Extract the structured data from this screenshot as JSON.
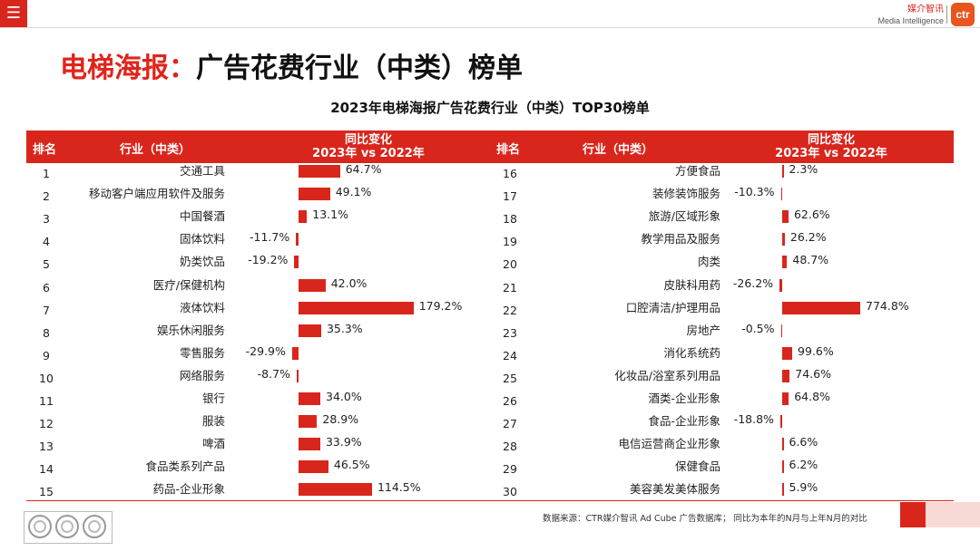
{
  "header": {
    "menu_icon": "menu-icon",
    "brand_cn": "媒介智讯",
    "brand_en": "Media Intelligence",
    "logo_text": "ctr"
  },
  "page_title_red": "电梯海报：",
  "page_title_black": "广告花费行业（中类）榜单",
  "chart_data": {
    "type": "bar",
    "title": "2023年电梯海报广告花费行业（中类）TOP30榜单",
    "columns": {
      "rank": "排名",
      "industry": "行业（中类）",
      "change_line1": "同比变化",
      "change_line2": "2023年 vs 2022年"
    },
    "unit": "%",
    "bar_color": "#d9261c",
    "rows": [
      {
        "rank": "1",
        "industry": "交通工具",
        "value": 64.7,
        "label": "64.7%"
      },
      {
        "rank": "2",
        "industry": "移动客户端应用软件及服务",
        "value": 49.1,
        "label": "49.1%"
      },
      {
        "rank": "3",
        "industry": "中国餐酒",
        "value": 13.1,
        "label": "13.1%"
      },
      {
        "rank": "4",
        "industry": "固体饮料",
        "value": -11.7,
        "label": "-11.7%"
      },
      {
        "rank": "5",
        "industry": "奶类饮品",
        "value": -19.2,
        "label": "-19.2%"
      },
      {
        "rank": "6",
        "industry": "医疗/保健机构",
        "value": 42.0,
        "label": "42.0%"
      },
      {
        "rank": "7",
        "industry": "液体饮料",
        "value": 179.2,
        "label": "179.2%"
      },
      {
        "rank": "8",
        "industry": "娱乐休闲服务",
        "value": 35.3,
        "label": "35.3%"
      },
      {
        "rank": "9",
        "industry": "零售服务",
        "value": -29.9,
        "label": "-29.9%"
      },
      {
        "rank": "10",
        "industry": "网络服务",
        "value": -8.7,
        "label": "-8.7%"
      },
      {
        "rank": "11",
        "industry": "银行",
        "value": 34.0,
        "label": "34.0%"
      },
      {
        "rank": "12",
        "industry": "服装",
        "value": 28.9,
        "label": "28.9%"
      },
      {
        "rank": "13",
        "industry": "啤酒",
        "value": 33.9,
        "label": "33.9%"
      },
      {
        "rank": "14",
        "industry": "食品类系列产品",
        "value": 46.5,
        "label": "46.5%"
      },
      {
        "rank": "15",
        "industry": "药品-企业形象",
        "value": 114.5,
        "label": "114.5%"
      },
      {
        "rank": "16",
        "industry": "方便食品",
        "value": 2.3,
        "label": "2.3%"
      },
      {
        "rank": "17",
        "industry": "装修装饰服务",
        "value": -10.3,
        "label": "-10.3%"
      },
      {
        "rank": "18",
        "industry": "旅游/区域形象",
        "value": 62.6,
        "label": "62.6%"
      },
      {
        "rank": "19",
        "industry": "教学用品及服务",
        "value": 26.2,
        "label": "26.2%"
      },
      {
        "rank": "20",
        "industry": "肉类",
        "value": 48.7,
        "label": "48.7%"
      },
      {
        "rank": "21",
        "industry": "皮肤科用药",
        "value": -26.2,
        "label": "-26.2%"
      },
      {
        "rank": "22",
        "industry": "口腔清洁/护理用品",
        "value": 774.8,
        "label": "774.8%"
      },
      {
        "rank": "23",
        "industry": "房地产",
        "value": -0.5,
        "label": "-0.5%"
      },
      {
        "rank": "24",
        "industry": "消化系统药",
        "value": 99.6,
        "label": "99.6%"
      },
      {
        "rank": "25",
        "industry": "化妆品/浴室系列用品",
        "value": 74.6,
        "label": "74.6%"
      },
      {
        "rank": "26",
        "industry": "酒类-企业形象",
        "value": 64.8,
        "label": "64.8%"
      },
      {
        "rank": "27",
        "industry": "食品-企业形象",
        "value": -18.8,
        "label": "-18.8%"
      },
      {
        "rank": "28",
        "industry": "电信运营商企业形象",
        "value": 6.6,
        "label": "6.6%"
      },
      {
        "rank": "29",
        "industry": "保健食品",
        "value": 6.2,
        "label": "6.2%"
      },
      {
        "rank": "30",
        "industry": "美容美发美体服务",
        "value": 5.9,
        "label": "5.9%"
      }
    ]
  },
  "footer": {
    "source": "数据来源：CTR媒介智讯 Ad Cube 广告数据库； 同比为本年的N月与上年N月的对比",
    "cert_icons": [
      "certification-badge-icon",
      "certification-badge-icon",
      "certification-badge-icon"
    ]
  }
}
